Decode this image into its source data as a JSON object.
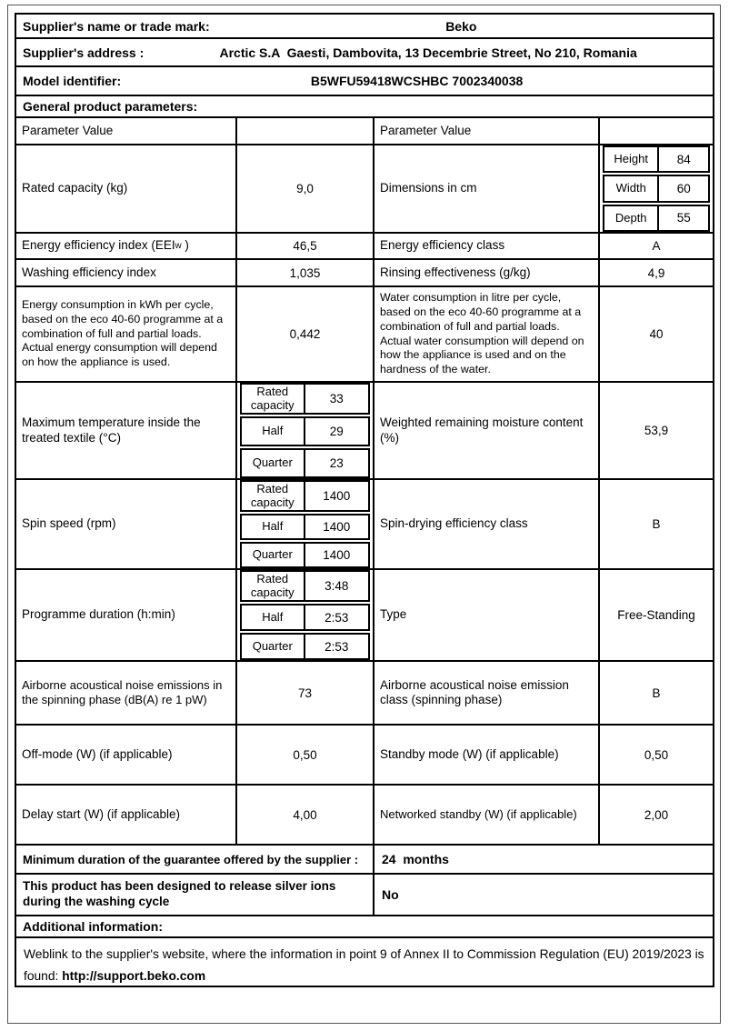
{
  "document": {
    "supplier_name": {
      "label": "Supplier's name or trade mark:",
      "value": "Beko"
    },
    "supplier_address": {
      "label": "Supplier's address :",
      "value": "Arctic S.A  Gaesti, Dambovita, 13 Decembrie Street, No 210, Romania"
    },
    "model_identifier": {
      "label": "Model identifier:",
      "value": "B5WFU59418WCSHBC 7002340038"
    },
    "general_parameters_title": "General product parameters:",
    "column_header_left": "Parameter Value",
    "column_header_right": "Parameter Value"
  },
  "params": {
    "rated_capacity": {
      "label": "Rated capacity (kg)",
      "value": "9,0"
    },
    "dimensions": {
      "label": "Dimensions in cm",
      "rows": [
        {
          "label": "Height",
          "value": "84"
        },
        {
          "label": "Width",
          "value": "60"
        },
        {
          "label": "Depth",
          "value": "55"
        }
      ]
    },
    "eei": {
      "label_prefix": "Energy efficiency index (EEI",
      "label_sub": "w",
      "label_suffix": " )",
      "value": "46,5"
    },
    "energy_class": {
      "label": "Energy efficiency class",
      "value": "A"
    },
    "washing_index": {
      "label": "Washing efficiency index",
      "value": "1,035"
    },
    "rinsing": {
      "label": "Rinsing effectiveness (g/kg)",
      "value": "4,9"
    },
    "energy_consumption": {
      "label": "Energy consumption in kWh per cycle, based on the eco 40-60 programme at a combination of full and partial loads. Actual energy consumption will depend on how the appliance is used.",
      "value": "0,442"
    },
    "water_consumption": {
      "label": "Water consumption in litre per cycle, based on the eco 40-60 programme at a combination of full and partial loads. Actual water consumption will depend on how the appliance is used and on the hardness of the water.",
      "value": "40"
    },
    "max_temperature": {
      "label": "Maximum temperature inside the treated textile (°C)",
      "rows": [
        {
          "label": "Rated capacity",
          "value": "33"
        },
        {
          "label": "Half",
          "value": "29"
        },
        {
          "label": "Quarter",
          "value": "23"
        }
      ]
    },
    "moisture": {
      "label": "Weighted remaining moisture content (%)",
      "value": "53,9"
    },
    "spin_speed": {
      "label": "Spin speed (rpm)",
      "rows": [
        {
          "label": "Rated capacity",
          "value": "1400"
        },
        {
          "label": "Half",
          "value": "1400"
        },
        {
          "label": "Quarter",
          "value": "1400"
        }
      ]
    },
    "spin_class": {
      "label": "Spin-drying efficiency class",
      "value": "B"
    },
    "duration": {
      "label": "Programme duration (h:min)",
      "rows": [
        {
          "label": "Rated capacity",
          "value": "3:48"
        },
        {
          "label": "Half",
          "value": "2:53"
        },
        {
          "label": "Quarter",
          "value": "2:53"
        }
      ]
    },
    "type": {
      "label": "Type",
      "value": "Free-Standing"
    },
    "noise": {
      "label": "Airborne acoustical noise emissions in the spinning phase (dB(A) re 1 pW)",
      "value": "73"
    },
    "noise_class": {
      "label": "Airborne acoustical noise emission class (spinning phase)",
      "value": "B"
    },
    "off_mode": {
      "label": "Off-mode (W) (if applicable)",
      "value": "0,50"
    },
    "standby": {
      "label": "Standby mode (W) (if applicable)",
      "value": "0,50"
    },
    "delay_start": {
      "label": "Delay start (W) (if applicable)",
      "value": "4,00"
    },
    "networked_standby": {
      "label": "Networked standby (W) (if applicable)",
      "value": "2,00"
    }
  },
  "footer": {
    "guarantee": {
      "label": "Minimum duration of the guarantee offered by the supplier :",
      "value": "24  months"
    },
    "silver_ions": {
      "label": "This product has been designed to release silver ions during the washing cycle",
      "value": "No"
    },
    "additional_info_title": "Additional information:",
    "weblink": {
      "text": "Weblink to the supplier's website, where the information in point 9 of Annex II to Commission Regulation (EU) 2019/2023 is found: ",
      "url": "http://support.beko.com"
    }
  }
}
